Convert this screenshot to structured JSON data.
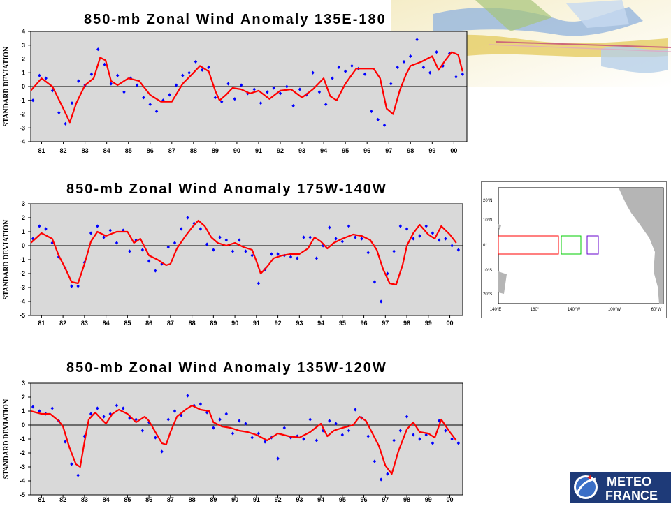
{
  "charts_ui": {
    "y_axis_label": "STANDARD DEVIATION"
  },
  "chart_data": [
    {
      "type": "scatter",
      "title": "850-mb Zonal Wind Anomaly  135E-180",
      "ylabel": "STANDARD DEVIATION",
      "x_tick_labels": [
        "81",
        "82",
        "83",
        "84",
        "85",
        "86",
        "87",
        "88",
        "89",
        "90",
        "91",
        "92",
        "93",
        "94",
        "95",
        "96",
        "97",
        "98",
        "99",
        "00"
      ],
      "x_range": [
        1980.5,
        2000.6
      ],
      "ylim": [
        -4,
        4
      ],
      "y_ticks": [
        4,
        3,
        2,
        1,
        0,
        -1,
        -2,
        -3,
        -4
      ],
      "series": [
        {
          "kind": "points",
          "color": "#0000ff",
          "x": [
            1980.6,
            1980.9,
            1981.2,
            1981.5,
            1981.8,
            1982.1,
            1982.4,
            1982.7,
            1983.0,
            1983.3,
            1983.6,
            1983.9,
            1984.2,
            1984.5,
            1984.8,
            1985.1,
            1985.4,
            1985.7,
            1986.0,
            1986.3,
            1986.6,
            1986.9,
            1987.2,
            1987.5,
            1987.8,
            1988.1,
            1988.4,
            1988.7,
            1989.0,
            1989.3,
            1989.6,
            1989.9,
            1990.2,
            1990.5,
            1990.8,
            1991.1,
            1991.4,
            1991.7,
            1992.0,
            1992.3,
            1992.6,
            1992.9,
            1993.2,
            1993.5,
            1993.8,
            1994.1,
            1994.4,
            1994.7,
            1995.0,
            1995.3,
            1995.6,
            1995.9,
            1996.2,
            1996.5,
            1996.8,
            1997.1,
            1997.4,
            1997.7,
            1998.0,
            1998.3,
            1998.6,
            1998.9,
            1999.2,
            1999.5,
            1999.8,
            2000.1,
            2000.4
          ],
          "y": [
            -1.0,
            0.8,
            0.6,
            -0.3,
            -1.9,
            -2.7,
            -1.2,
            0.4,
            0.1,
            0.9,
            2.7,
            1.6,
            0.2,
            0.8,
            -0.4,
            0.6,
            0.1,
            -0.8,
            -1.3,
            -1.8,
            -1.0,
            -0.6,
            0.1,
            0.8,
            1.0,
            1.8,
            1.2,
            1.4,
            -0.8,
            -1.1,
            0.2,
            -0.9,
            0.1,
            -0.5,
            -0.2,
            -1.2,
            -0.4,
            -0.1,
            -0.5,
            0.0,
            -1.4,
            -0.2,
            -0.6,
            1.0,
            -0.4,
            -1.3,
            0.6,
            1.4,
            1.1,
            1.5,
            1.3,
            0.9,
            -1.8,
            -2.4,
            -2.8,
            0.2,
            1.4,
            1.8,
            2.2,
            3.4,
            1.4,
            1.0,
            2.5,
            1.5,
            2.4,
            0.7,
            0.9
          ]
        },
        {
          "kind": "line",
          "color": "#ff0000",
          "x": [
            1980.5,
            1981.0,
            1981.5,
            1982.0,
            1982.3,
            1982.6,
            1983.0,
            1983.4,
            1983.7,
            1983.95,
            1984.2,
            1984.5,
            1985.0,
            1985.5,
            1986.0,
            1986.5,
            1987.0,
            1987.5,
            1988.0,
            1988.3,
            1988.7,
            1989.0,
            1989.2,
            1989.5,
            1989.8,
            1990.2,
            1990.6,
            1991.0,
            1991.5,
            1992.0,
            1992.5,
            1993.0,
            1993.5,
            1994.0,
            1994.3,
            1994.6,
            1995.0,
            1995.5,
            1996.0,
            1996.3,
            1996.6,
            1996.9,
            1997.2,
            1997.5,
            1997.8,
            1998.0,
            1998.5,
            1999.0,
            1999.3,
            1999.6,
            1999.9,
            2000.2,
            2000.4
          ],
          "y": [
            -0.3,
            0.6,
            0.0,
            -1.6,
            -2.6,
            -1.2,
            0.1,
            0.6,
            2.1,
            1.9,
            0.4,
            0.1,
            0.6,
            0.4,
            -0.6,
            -1.1,
            -1.1,
            0.2,
            1.0,
            1.5,
            1.1,
            -0.3,
            -1.0,
            -0.6,
            -0.1,
            -0.2,
            -0.5,
            -0.3,
            -0.9,
            -0.3,
            -0.2,
            -0.8,
            -0.2,
            0.6,
            -0.7,
            -1.0,
            0.2,
            1.3,
            1.3,
            1.3,
            0.6,
            -1.6,
            -2.0,
            -0.3,
            0.9,
            1.5,
            1.8,
            2.2,
            1.2,
            1.9,
            2.5,
            2.3,
            1.1
          ]
        }
      ]
    },
    {
      "type": "scatter",
      "title": "850-mb Zonal Wind Anomaly  175W-140W",
      "ylabel": "STANDARD DEVIATION",
      "x_tick_labels": [
        "81",
        "82",
        "83",
        "84",
        "85",
        "86",
        "87",
        "88",
        "89",
        "90",
        "91",
        "92",
        "93",
        "94",
        "95",
        "96",
        "97",
        "98",
        "99",
        "00"
      ],
      "x_range": [
        1980.5,
        2000.6
      ],
      "ylim": [
        -5,
        3
      ],
      "y_ticks": [
        3,
        2,
        1,
        0,
        -1,
        -2,
        -3,
        -4,
        -5
      ],
      "series": [
        {
          "kind": "points",
          "color": "#0000ff",
          "x": [
            1980.6,
            1980.9,
            1981.2,
            1981.5,
            1981.8,
            1982.1,
            1982.4,
            1982.7,
            1983.0,
            1983.3,
            1983.6,
            1983.9,
            1984.2,
            1984.5,
            1984.8,
            1985.1,
            1985.4,
            1985.7,
            1986.0,
            1986.3,
            1986.6,
            1986.9,
            1987.2,
            1987.5,
            1987.8,
            1988.1,
            1988.4,
            1988.7,
            1989.0,
            1989.3,
            1989.6,
            1989.9,
            1990.2,
            1990.5,
            1990.8,
            1991.1,
            1991.4,
            1991.7,
            1992.0,
            1992.3,
            1992.6,
            1992.9,
            1993.2,
            1993.5,
            1993.8,
            1994.1,
            1994.4,
            1994.7,
            1995.0,
            1995.3,
            1995.6,
            1995.9,
            1996.2,
            1996.5,
            1996.8,
            1997.1,
            1997.4,
            1997.7,
            1998.0,
            1998.3,
            1998.6,
            1998.9,
            1999.2,
            1999.5,
            1999.8,
            2000.1,
            2000.4
          ],
          "y": [
            0.5,
            1.4,
            1.2,
            0.2,
            -0.8,
            -1.6,
            -2.9,
            -2.9,
            -1.2,
            0.9,
            1.4,
            0.6,
            1.1,
            0.2,
            1.1,
            -0.4,
            0.4,
            -0.3,
            -1.1,
            -1.8,
            -1.3,
            -0.1,
            0.2,
            1.2,
            2.0,
            1.6,
            1.2,
            0.1,
            -0.3,
            0.6,
            0.4,
            -0.4,
            0.4,
            -0.4,
            -0.7,
            -2.7,
            -1.7,
            -0.6,
            -0.6,
            -0.7,
            -0.8,
            -0.9,
            0.6,
            0.6,
            -0.9,
            0.0,
            1.3,
            0.5,
            0.3,
            1.4,
            0.6,
            0.5,
            -0.5,
            -2.6,
            -4.0,
            -2.0,
            -0.4,
            1.4,
            1.2,
            0.5,
            0.7,
            1.4,
            0.9,
            0.4,
            0.5,
            0.0,
            -0.3
          ]
        },
        {
          "kind": "line",
          "color": "#ff0000",
          "x": [
            1980.5,
            1981.0,
            1981.5,
            1981.8,
            1982.1,
            1982.4,
            1982.7,
            1983.0,
            1983.3,
            1983.6,
            1984.0,
            1984.5,
            1985.0,
            1985.3,
            1985.6,
            1986.0,
            1986.4,
            1986.8,
            1987.0,
            1987.3,
            1987.7,
            1988.0,
            1988.3,
            1988.6,
            1988.9,
            1989.2,
            1989.6,
            1990.0,
            1990.4,
            1990.8,
            1991.0,
            1991.2,
            1991.5,
            1991.8,
            1992.2,
            1992.6,
            1993.0,
            1993.4,
            1993.7,
            1994.0,
            1994.3,
            1994.6,
            1995.0,
            1995.5,
            1995.9,
            1996.3,
            1996.6,
            1996.9,
            1997.2,
            1997.5,
            1997.8,
            1998.0,
            1998.3,
            1998.6,
            1999.0,
            1999.3,
            1999.6,
            2000.0,
            2000.3
          ],
          "y": [
            0.2,
            0.9,
            0.5,
            -0.7,
            -1.6,
            -2.6,
            -2.7,
            -1.3,
            0.3,
            1.0,
            0.7,
            1.0,
            1.0,
            0.2,
            0.5,
            -0.7,
            -1.0,
            -1.4,
            -1.3,
            -0.2,
            0.7,
            1.3,
            1.8,
            1.4,
            0.6,
            0.2,
            0.0,
            0.2,
            -0.1,
            -0.3,
            -1.1,
            -2.0,
            -1.5,
            -0.9,
            -0.7,
            -0.6,
            -0.6,
            -0.2,
            0.6,
            0.3,
            -0.2,
            0.2,
            0.5,
            0.8,
            0.7,
            0.4,
            -0.3,
            -1.7,
            -2.7,
            -2.8,
            -1.4,
            0.0,
            0.9,
            1.5,
            0.8,
            0.5,
            1.4,
            0.8,
            0.2
          ]
        }
      ]
    },
    {
      "type": "scatter",
      "title": "850-mb Zonal Wind Anomaly  135W-120W",
      "ylabel": "STANDARD DEVIATION",
      "x_tick_labels": [
        "81",
        "82",
        "83",
        "84",
        "85",
        "86",
        "87",
        "88",
        "89",
        "90",
        "91",
        "92",
        "93",
        "94",
        "95",
        "96",
        "97",
        "98",
        "99",
        "00"
      ],
      "x_range": [
        1980.5,
        2000.6
      ],
      "ylim": [
        -5,
        3
      ],
      "y_ticks": [
        3,
        2,
        1,
        0,
        -1,
        -2,
        -3,
        -4,
        -5
      ],
      "series": [
        {
          "kind": "points",
          "color": "#0000ff",
          "x": [
            1980.6,
            1980.9,
            1981.2,
            1981.5,
            1981.8,
            1982.1,
            1982.4,
            1982.7,
            1983.0,
            1983.3,
            1983.6,
            1983.9,
            1984.2,
            1984.5,
            1984.8,
            1985.1,
            1985.4,
            1985.7,
            1986.0,
            1986.3,
            1986.6,
            1986.9,
            1987.2,
            1987.5,
            1987.8,
            1988.1,
            1988.4,
            1988.7,
            1989.0,
            1989.3,
            1989.6,
            1989.9,
            1990.2,
            1990.5,
            1990.8,
            1991.1,
            1991.4,
            1991.7,
            1992.0,
            1992.3,
            1992.6,
            1992.9,
            1993.2,
            1993.5,
            1993.8,
            1994.1,
            1994.4,
            1994.7,
            1995.0,
            1995.3,
            1995.6,
            1995.9,
            1996.2,
            1996.5,
            1996.8,
            1997.1,
            1997.4,
            1997.7,
            1998.0,
            1998.3,
            1998.6,
            1998.9,
            1999.2,
            1999.5,
            1999.8,
            2000.1,
            2000.4
          ],
          "y": [
            1.3,
            1.0,
            0.8,
            1.2,
            0.3,
            -1.2,
            -2.8,
            -3.6,
            -0.8,
            0.8,
            1.2,
            0.6,
            0.8,
            1.4,
            1.2,
            0.5,
            0.4,
            -0.4,
            0.2,
            -0.9,
            -1.9,
            0.4,
            1.0,
            0.7,
            2.1,
            1.4,
            1.5,
            0.9,
            -0.2,
            0.4,
            0.8,
            -0.6,
            0.3,
            0.1,
            -0.9,
            -0.6,
            -1.2,
            -0.9,
            -2.4,
            -0.2,
            -0.9,
            -0.8,
            -1.0,
            0.4,
            -1.1,
            -0.4,
            0.3,
            0.1,
            -0.7,
            -0.4,
            1.1,
            0.5,
            -0.8,
            -2.6,
            -3.9,
            -3.5,
            -1.1,
            -0.4,
            0.6,
            -0.7,
            -1.0,
            -0.7,
            -1.3,
            0.3,
            -0.4,
            -1.0,
            -1.3
          ]
        },
        {
          "kind": "line",
          "color": "#ff0000",
          "x": [
            1980.5,
            1981.0,
            1981.4,
            1981.8,
            1982.0,
            1982.3,
            1982.6,
            1982.8,
            1983.0,
            1983.2,
            1983.5,
            1983.8,
            1984.0,
            1984.3,
            1984.6,
            1985.0,
            1985.4,
            1985.8,
            1986.0,
            1986.3,
            1986.6,
            1986.8,
            1987.0,
            1987.3,
            1987.7,
            1988.0,
            1988.4,
            1988.8,
            1989.0,
            1989.4,
            1989.8,
            1990.2,
            1990.6,
            1991.0,
            1991.5,
            1992.0,
            1992.5,
            1993.0,
            1993.5,
            1994.0,
            1994.3,
            1994.6,
            1995.0,
            1995.5,
            1995.8,
            1996.1,
            1996.4,
            1996.7,
            1997.0,
            1997.3,
            1997.6,
            1998.0,
            1998.3,
            1998.6,
            1999.0,
            1999.3,
            1999.6,
            2000.0,
            2000.3
          ],
          "y": [
            1.0,
            0.8,
            0.8,
            0.3,
            -0.1,
            -1.6,
            -2.8,
            -3.0,
            -1.2,
            0.4,
            0.9,
            0.4,
            0.1,
            0.8,
            1.1,
            0.8,
            0.2,
            0.6,
            0.3,
            -0.5,
            -1.3,
            -1.4,
            -0.5,
            0.6,
            1.1,
            1.4,
            1.1,
            1.0,
            0.2,
            -0.1,
            -0.2,
            -0.4,
            -0.5,
            -0.7,
            -1.1,
            -0.6,
            -0.8,
            -0.9,
            -0.5,
            0.1,
            -0.8,
            -0.4,
            -0.2,
            0.0,
            0.6,
            0.3,
            -0.6,
            -1.5,
            -2.9,
            -3.5,
            -1.9,
            -0.3,
            0.2,
            -0.5,
            -0.6,
            -0.9,
            0.4,
            -0.5,
            -1.1
          ]
        }
      ]
    }
  ],
  "map": {
    "lat_labels": [
      "20°N",
      "10°N",
      "0°",
      "10°S",
      "20°S"
    ],
    "lon_labels": [
      "140°E",
      "160°",
      "140°W",
      "100°W",
      "60°W"
    ],
    "box_colors": [
      "#ff0000",
      "#00cc00",
      "#6600cc"
    ]
  },
  "logo": {
    "line1": "METEO",
    "line2": "FRANCE",
    "colors": {
      "bg": "#1e3a78",
      "accent": "#e52020",
      "text": "#ffffff"
    }
  }
}
